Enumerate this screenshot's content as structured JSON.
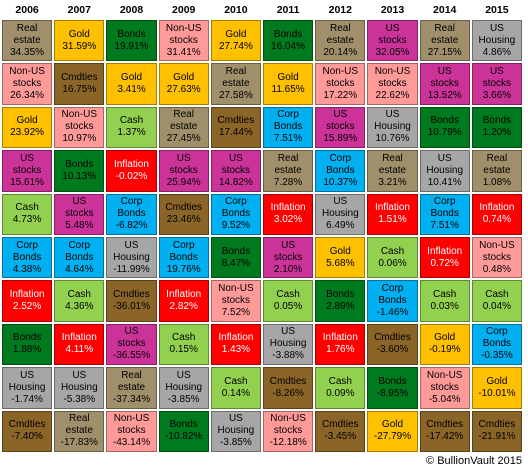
{
  "footer": "© BullionVault 2015",
  "palette": {
    "Real estate": {
      "bg": "#a08f6b",
      "fg": "#000000"
    },
    "Gold": {
      "bg": "#ffc000",
      "fg": "#000000"
    },
    "Bonds": {
      "bg": "#007a1e",
      "fg": "#000000"
    },
    "Non-US stocks": {
      "bg": "#ff9a99",
      "fg": "#000000"
    },
    "US Housing": {
      "bg": "#a6a6a6",
      "fg": "#000000"
    },
    "Cmdties": {
      "bg": "#8b6528",
      "fg": "#000000"
    },
    "US stocks": {
      "bg": "#cc3399",
      "fg": "#000000"
    },
    "Cash": {
      "bg": "#92d050",
      "fg": "#000000"
    },
    "Inflation": {
      "bg": "#ff0000",
      "fg": "#ffffff"
    },
    "Corp Bonds": {
      "bg": "#00b0f0",
      "fg": "#000000"
    }
  },
  "chart_data": {
    "type": "table",
    "title": "",
    "columns": [
      "2006",
      "2007",
      "2008",
      "2009",
      "2010",
      "2011",
      "2012",
      "2013",
      "2014",
      "2015"
    ],
    "rows": [
      [
        {
          "asset": "Real estate",
          "label": "Real\nestate",
          "value": "34.35%"
        },
        {
          "asset": "Gold",
          "label": "Gold",
          "value": "31.59%"
        },
        {
          "asset": "Bonds",
          "label": "Bonds",
          "value": "19.91%"
        },
        {
          "asset": "Non-US stocks",
          "label": "Non-US\nstocks",
          "value": "31.41%"
        },
        {
          "asset": "Gold",
          "label": "Gold",
          "value": "27.74%"
        },
        {
          "asset": "Bonds",
          "label": "Bonds",
          "value": "16.04%"
        },
        {
          "asset": "Real estate",
          "label": "Real\nestate",
          "value": "20.14%"
        },
        {
          "asset": "US stocks",
          "label": "US\nstocks",
          "value": "32.05%"
        },
        {
          "asset": "Real estate",
          "label": "Real\nestate",
          "value": "27.15%"
        },
        {
          "asset": "US Housing",
          "label": "US\nHousing",
          "value": "4.86%"
        }
      ],
      [
        {
          "asset": "Non-US stocks",
          "label": "Non-US\nstocks",
          "value": "26.34%"
        },
        {
          "asset": "Cmdties",
          "label": "Cmdties",
          "value": "16.75%"
        },
        {
          "asset": "Gold",
          "label": "Gold",
          "value": "3.41%"
        },
        {
          "asset": "Gold",
          "label": "Gold",
          "value": "27.63%"
        },
        {
          "asset": "Real estate",
          "label": "Real\nestate",
          "value": "27.58%"
        },
        {
          "asset": "Gold",
          "label": "Gold",
          "value": "11.65%"
        },
        {
          "asset": "Non-US stocks",
          "label": "Non-US\nstocks",
          "value": "17.22%"
        },
        {
          "asset": "Non-US stocks",
          "label": "Non-US\nstocks",
          "value": "22.62%"
        },
        {
          "asset": "US stocks",
          "label": "US\nstocks",
          "value": "13.52%"
        },
        {
          "asset": "US stocks",
          "label": "US\nstocks",
          "value": "3.66%"
        }
      ],
      [
        {
          "asset": "Gold",
          "label": "Gold",
          "value": "23.92%"
        },
        {
          "asset": "Non-US stocks",
          "label": "Non-US\nstocks",
          "value": "10.97%"
        },
        {
          "asset": "Cash",
          "label": "Cash",
          "value": "1.37%"
        },
        {
          "asset": "Real estate",
          "label": "Real\nestate",
          "value": "27.45%"
        },
        {
          "asset": "Cmdties",
          "label": "Cmdties",
          "value": "17.44%"
        },
        {
          "asset": "Corp Bonds",
          "label": "Corp\nBonds",
          "value": "7.51%"
        },
        {
          "asset": "US stocks",
          "label": "US\nstocks",
          "value": "15.89%"
        },
        {
          "asset": "US Housing",
          "label": "US\nHousing",
          "value": "10.76%"
        },
        {
          "asset": "Bonds",
          "label": "Bonds",
          "value": "10.79%"
        },
        {
          "asset": "Bonds",
          "label": "Bonds",
          "value": "1.20%"
        }
      ],
      [
        {
          "asset": "US stocks",
          "label": "US\nstocks",
          "value": "15.61%"
        },
        {
          "asset": "Bonds",
          "label": "Bonds",
          "value": "10.13%"
        },
        {
          "asset": "Inflation",
          "label": "Inflation",
          "value": "-0.02%"
        },
        {
          "asset": "US stocks",
          "label": "US\nstocks",
          "value": "25.94%"
        },
        {
          "asset": "US stocks",
          "label": "US\nstocks",
          "value": "14.82%"
        },
        {
          "asset": "Real estate",
          "label": "Real\nestate",
          "value": "7.28%"
        },
        {
          "asset": "Corp Bonds",
          "label": "Corp\nBonds",
          "value": "10.37%"
        },
        {
          "asset": "Real estate",
          "label": "Real\nestate",
          "value": "3.21%"
        },
        {
          "asset": "US Housing",
          "label": "US\nHousing",
          "value": "10.41%"
        },
        {
          "asset": "Real estate",
          "label": "Real\nestate",
          "value": "1.08%"
        }
      ],
      [
        {
          "asset": "Cash",
          "label": "Cash",
          "value": "4.73%"
        },
        {
          "asset": "US stocks",
          "label": "US\nstocks",
          "value": "5.48%"
        },
        {
          "asset": "Corp Bonds",
          "label": "Corp\nBonds",
          "value": "-6.82%"
        },
        {
          "asset": "Cmdties",
          "label": "Cmdties",
          "value": "23.46%"
        },
        {
          "asset": "Corp Bonds",
          "label": "Corp\nBonds",
          "value": "9.52%"
        },
        {
          "asset": "Inflation",
          "label": "Inflation",
          "value": "3.02%"
        },
        {
          "asset": "US Housing",
          "label": "US\nHousing",
          "value": "6.49%"
        },
        {
          "asset": "Inflation",
          "label": "Inflation",
          "value": "1.51%"
        },
        {
          "asset": "Corp Bonds",
          "label": "Corp\nBonds",
          "value": "7.51%"
        },
        {
          "asset": "Inflation",
          "label": "Inflation",
          "value": "0.74%"
        }
      ],
      [
        {
          "asset": "Corp Bonds",
          "label": "Corp\nBonds",
          "value": "4.38%"
        },
        {
          "asset": "Corp Bonds",
          "label": "Corp\nBonds",
          "value": "4.64%"
        },
        {
          "asset": "US Housing",
          "label": "US\nHousing",
          "value": "-11.99%"
        },
        {
          "asset": "Corp Bonds",
          "label": "Corp\nBonds",
          "value": "19.76%"
        },
        {
          "asset": "Bonds",
          "label": "Bonds",
          "value": "8.47%"
        },
        {
          "asset": "US stocks",
          "label": "US\nstocks",
          "value": "2.10%"
        },
        {
          "asset": "Gold",
          "label": "Gold",
          "value": "5.68%"
        },
        {
          "asset": "Cash",
          "label": "Cash",
          "value": "0.06%"
        },
        {
          "asset": "Inflation",
          "label": "Inflation",
          "value": "0.72%"
        },
        {
          "asset": "Non-US stocks",
          "label": "Non-US\nstocks",
          "value": "0.48%"
        }
      ],
      [
        {
          "asset": "Inflation",
          "label": "Inflation",
          "value": "2.52%"
        },
        {
          "asset": "Cash",
          "label": "Cash",
          "value": "4.36%"
        },
        {
          "asset": "Cmdties",
          "label": "Cmdties",
          "value": "-36.01%"
        },
        {
          "asset": "Inflation",
          "label": "Inflation",
          "value": "2.82%"
        },
        {
          "asset": "Non-US stocks",
          "label": "Non-US\nstocks",
          "value": "7.52%"
        },
        {
          "asset": "Cash",
          "label": "Cash",
          "value": "0.05%"
        },
        {
          "asset": "Bonds",
          "label": "Bonds",
          "value": "2.89%"
        },
        {
          "asset": "Corp Bonds",
          "label": "Corp\nBonds",
          "value": "-1.46%"
        },
        {
          "asset": "Cash",
          "label": "Cash",
          "value": "0.03%"
        },
        {
          "asset": "Cash",
          "label": "Cash",
          "value": "0.04%"
        }
      ],
      [
        {
          "asset": "Bonds",
          "label": "Bonds",
          "value": "1.88%"
        },
        {
          "asset": "Inflation",
          "label": "Inflation",
          "value": "4.11%"
        },
        {
          "asset": "US stocks",
          "label": "US\nstocks",
          "value": "-36.55%"
        },
        {
          "asset": "Cash",
          "label": "Cash",
          "value": "0.15%"
        },
        {
          "asset": "Inflation",
          "label": "Inflation",
          "value": "1.43%"
        },
        {
          "asset": "US Housing",
          "label": "US\nHousing",
          "value": "-3.88%"
        },
        {
          "asset": "Inflation",
          "label": "Inflation",
          "value": "1.76%"
        },
        {
          "asset": "Cmdties",
          "label": "Cmdties",
          "value": "-3.60%"
        },
        {
          "asset": "Gold",
          "label": "Gold",
          "value": "-0.19%"
        },
        {
          "asset": "Corp Bonds",
          "label": "Corp\nBonds",
          "value": "-0.35%"
        }
      ],
      [
        {
          "asset": "US Housing",
          "label": "US\nHousing",
          "value": "-1.74%"
        },
        {
          "asset": "US Housing",
          "label": "US\nHousing",
          "value": "-5.38%"
        },
        {
          "asset": "Real estate",
          "label": "Real\nestate",
          "value": "-37.34%"
        },
        {
          "asset": "US Housing",
          "label": "US\nHousing",
          "value": "-3.85%"
        },
        {
          "asset": "Cash",
          "label": "Cash",
          "value": "0.14%"
        },
        {
          "asset": "Cmdties",
          "label": "Cmdties",
          "value": "-8.26%"
        },
        {
          "asset": "Cash",
          "label": "Cash",
          "value": "0.09%"
        },
        {
          "asset": "Bonds",
          "label": "Bonds",
          "value": "-8.95%"
        },
        {
          "asset": "Non-US stocks",
          "label": "Non-US\nstocks",
          "value": "-5.04%"
        },
        {
          "asset": "Gold",
          "label": "Gold",
          "value": "-10.01%"
        }
      ],
      [
        {
          "asset": "Cmdties",
          "label": "Cmdties",
          "value": "-7.40%"
        },
        {
          "asset": "Real estate",
          "label": "Real\nestate",
          "value": "-17.83%"
        },
        {
          "asset": "Non-US stocks",
          "label": "Non-US\nstocks",
          "value": "-43.14%"
        },
        {
          "asset": "Bonds",
          "label": "Bonds",
          "value": "-10.82%"
        },
        {
          "asset": "US Housing",
          "label": "US\nHousing",
          "value": "-3.85%"
        },
        {
          "asset": "Non-US stocks",
          "label": "Non-US\nstocks",
          "value": "-12.18%"
        },
        {
          "asset": "Cmdties",
          "label": "Cmdties",
          "value": "-3.45%"
        },
        {
          "asset": "Gold",
          "label": "Gold",
          "value": "-27.79%"
        },
        {
          "asset": "Cmdties",
          "label": "Cmdties",
          "value": "-17.42%"
        },
        {
          "asset": "Cmdties",
          "label": "Cmdties",
          "value": "-21.91%"
        }
      ]
    ]
  }
}
